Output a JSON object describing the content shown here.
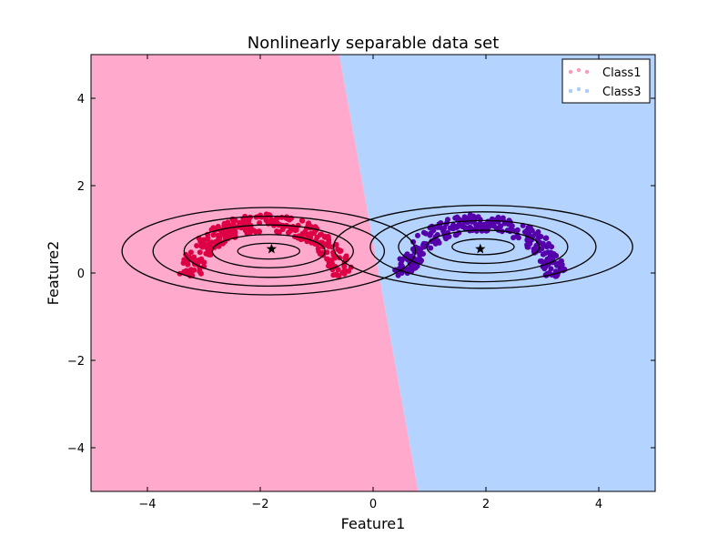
{
  "chart_data": {
    "type": "scatter",
    "title": "Nonlinearly separable data set",
    "xlabel": "Feature1",
    "ylabel": "Feature2",
    "xlim": [
      -5,
      5
    ],
    "ylim": [
      -5,
      5
    ],
    "xticks": [
      -4,
      -2,
      0,
      2,
      4
    ],
    "yticks": [
      -4,
      -2,
      0,
      2,
      4
    ],
    "xtick_labels": [
      "−4",
      "−2",
      "0",
      "2",
      "4"
    ],
    "ytick_labels": [
      "−4",
      "−2",
      "0",
      "2",
      "4"
    ],
    "grid": false,
    "legend_position": "top-right",
    "decision_boundary": {
      "top": [
        -0.6,
        5
      ],
      "bottom": [
        0.8,
        -5
      ],
      "left_region_color": "#ffaacc",
      "right_region_color": "#b5d3ff"
    },
    "series": [
      {
        "name": "Class1",
        "color": "#dd0044",
        "legend_color": "#ff99bb",
        "centroid": [
          -1.8,
          0.55
        ],
        "arc": {
          "center": [
            -1.9,
            -0.2
          ],
          "radius": 1.35,
          "angle_range_deg": [
            5,
            175
          ],
          "thickness": 0.2,
          "count": 300
        }
      },
      {
        "name": "Class3",
        "color": "#5500aa",
        "legend_color": "#aaccff",
        "centroid": [
          1.9,
          0.55
        ],
        "arc": {
          "center": [
            1.9,
            -0.2
          ],
          "radius": 1.35,
          "angle_range_deg": [
            5,
            175
          ],
          "thickness": 0.2,
          "count": 300
        }
      }
    ],
    "contours": [
      {
        "center": [
          -1.85,
          0.5
        ],
        "rx": [
          0.55,
          1.0,
          1.5,
          2.05,
          2.6
        ],
        "ry": [
          0.18,
          0.38,
          0.6,
          0.8,
          1.0
        ]
      },
      {
        "center": [
          1.95,
          0.6
        ],
        "rx": [
          0.55,
          1.0,
          1.5,
          2.0,
          2.65
        ],
        "ry": [
          0.18,
          0.38,
          0.6,
          0.8,
          0.95
        ]
      }
    ],
    "centroid_marker": "star"
  }
}
